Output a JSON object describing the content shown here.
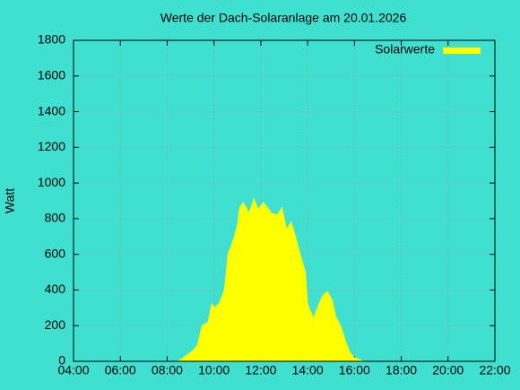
{
  "chart_data": {
    "type": "area",
    "title": "Werte der Dach-Solaranlage am 20.01.2026",
    "y_label": "Watt",
    "series": [
      {
        "name": "Solarwerte",
        "color": "#ffff00",
        "x": [
          8.44,
          8.7,
          9.1,
          9.3,
          9.4,
          9.5,
          9.75,
          9.9,
          10.05,
          10.25,
          10.45,
          10.6,
          10.8,
          11.0,
          11.1,
          11.25,
          11.5,
          11.7,
          11.9,
          12.1,
          12.3,
          12.45,
          12.7,
          12.9,
          13.1,
          13.3,
          13.5,
          13.7,
          13.9,
          14.0,
          14.25,
          14.45,
          14.65,
          14.85,
          15.05,
          15.2,
          15.4,
          15.6,
          15.8,
          16.0,
          16.3,
          16.4
        ],
        "values": [
          0,
          20,
          60,
          90,
          150,
          200,
          220,
          320,
          300,
          330,
          400,
          600,
          670,
          760,
          860,
          890,
          830,
          910,
          850,
          890,
          860,
          830,
          820,
          860,
          740,
          780,
          690,
          590,
          500,
          320,
          240,
          310,
          370,
          390,
          340,
          250,
          200,
          120,
          50,
          20,
          5,
          0
        ]
      }
    ],
    "xlim": [
      4,
      22
    ],
    "xticks": [
      {
        "value": 4,
        "label": "04:00"
      },
      {
        "value": 6,
        "label": "06:00"
      },
      {
        "value": 8,
        "label": "08:00"
      },
      {
        "value": 10,
        "label": "10:00"
      },
      {
        "value": 12,
        "label": "12:00"
      },
      {
        "value": 14,
        "label": "14:00"
      },
      {
        "value": 16,
        "label": "16:00"
      },
      {
        "value": 18,
        "label": "18:00"
      },
      {
        "value": 20,
        "label": "20:00"
      },
      {
        "value": 22,
        "label": "22:00"
      }
    ],
    "ylim": [
      0,
      1800
    ],
    "yticks": [
      0,
      200,
      400,
      600,
      800,
      1000,
      1200,
      1400,
      1600,
      1800
    ],
    "grid": true,
    "legend": "top-right"
  }
}
